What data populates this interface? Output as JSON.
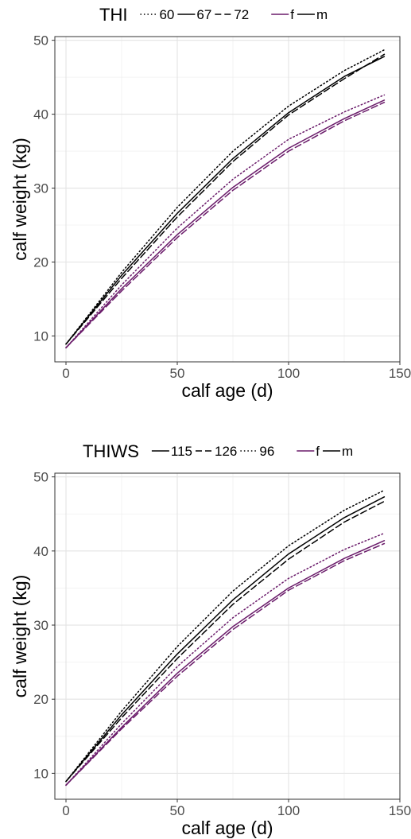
{
  "chart_data": [
    {
      "type": "line",
      "xlabel": "calf age (d)",
      "ylabel": "calf weight (kg)",
      "xlim": [
        -5,
        150
      ],
      "ylim": [
        6.5,
        50.5
      ],
      "xticks": [
        0,
        50,
        100,
        150
      ],
      "yticks": [
        10,
        20,
        30,
        40,
        50
      ],
      "grid": true,
      "legend_position": "top",
      "legend": {
        "group_title": "THI",
        "group_entries": [
          {
            "label": "60",
            "linetype": "dotted"
          },
          {
            "label": "67",
            "linetype": "solid"
          },
          {
            "label": "72",
            "linetype": "dashed"
          }
        ],
        "sex_entries": [
          {
            "label": "f",
            "color": "#6a1b6a"
          },
          {
            "label": "m",
            "color": "#000000"
          }
        ]
      },
      "series": [
        {
          "sex": "m",
          "group": "60",
          "linetype": "dotted",
          "color": "#000000",
          "x": [
            0,
            25,
            50,
            75,
            100,
            125,
            143
          ],
          "y": [
            8.9,
            18.6,
            27.4,
            35.0,
            41.1,
            45.9,
            48.7
          ]
        },
        {
          "sex": "m",
          "group": "67",
          "linetype": "solid",
          "color": "#000000",
          "x": [
            0,
            25,
            50,
            75,
            100,
            125,
            143
          ],
          "y": [
            8.9,
            18.2,
            26.6,
            34.0,
            40.2,
            45.1,
            47.8
          ]
        },
        {
          "sex": "m",
          "group": "72",
          "linetype": "dashed",
          "color": "#000000",
          "x": [
            0,
            25,
            50,
            75,
            100,
            125,
            143
          ],
          "y": [
            8.9,
            17.8,
            26.1,
            33.6,
            39.9,
            44.8,
            48.1
          ]
        },
        {
          "sex": "f",
          "group": "60",
          "linetype": "dotted",
          "color": "#6a1b6a",
          "x": [
            0,
            25,
            50,
            75,
            100,
            125,
            143
          ],
          "y": [
            8.4,
            16.9,
            24.6,
            31.2,
            36.6,
            40.3,
            42.6
          ]
        },
        {
          "sex": "f",
          "group": "67",
          "linetype": "solid",
          "color": "#6a1b6a",
          "x": [
            0,
            25,
            50,
            75,
            100,
            125,
            143
          ],
          "y": [
            8.4,
            16.4,
            23.7,
            30.1,
            35.4,
            39.4,
            41.9
          ]
        },
        {
          "sex": "f",
          "group": "72",
          "linetype": "dashed",
          "color": "#6a1b6a",
          "x": [
            0,
            25,
            50,
            75,
            100,
            125,
            143
          ],
          "y": [
            8.4,
            16.1,
            23.3,
            29.7,
            35.0,
            39.1,
            41.6
          ]
        }
      ]
    },
    {
      "type": "line",
      "xlabel": "calf age (d)",
      "ylabel": "calf weight (kg)",
      "xlim": [
        -5,
        150
      ],
      "ylim": [
        6.5,
        50.5
      ],
      "xticks": [
        0,
        50,
        100,
        150
      ],
      "yticks": [
        10,
        20,
        30,
        40,
        50
      ],
      "grid": true,
      "legend_position": "top",
      "legend": {
        "group_title": "THIWS",
        "group_entries": [
          {
            "label": "115",
            "linetype": "solid"
          },
          {
            "label": "126",
            "linetype": "dashed"
          },
          {
            "label": "96",
            "linetype": "dotted"
          }
        ],
        "sex_entries": [
          {
            "label": "f",
            "color": "#6a1b6a"
          },
          {
            "label": "m",
            "color": "#000000"
          }
        ]
      },
      "series": [
        {
          "sex": "m",
          "group": "96",
          "linetype": "dotted",
          "color": "#000000",
          "x": [
            0,
            25,
            50,
            75,
            100,
            125,
            143
          ],
          "y": [
            8.9,
            18.4,
            27.1,
            34.6,
            40.7,
            45.5,
            48.2
          ]
        },
        {
          "sex": "m",
          "group": "115",
          "linetype": "solid",
          "color": "#000000",
          "x": [
            0,
            25,
            50,
            75,
            100,
            125,
            143
          ],
          "y": [
            8.9,
            17.9,
            26.1,
            33.4,
            39.6,
            44.5,
            47.3
          ]
        },
        {
          "sex": "m",
          "group": "126",
          "linetype": "dashed",
          "color": "#000000",
          "x": [
            0,
            25,
            50,
            75,
            100,
            125,
            143
          ],
          "y": [
            8.9,
            17.5,
            25.5,
            32.8,
            38.9,
            43.9,
            46.7
          ]
        },
        {
          "sex": "f",
          "group": "96",
          "linetype": "dotted",
          "color": "#6a1b6a",
          "x": [
            0,
            25,
            50,
            75,
            100,
            125,
            143
          ],
          "y": [
            8.4,
            16.7,
            24.4,
            31.0,
            36.3,
            40.2,
            42.4
          ]
        },
        {
          "sex": "f",
          "group": "115",
          "linetype": "solid",
          "color": "#6a1b6a",
          "x": [
            0,
            25,
            50,
            75,
            100,
            125,
            143
          ],
          "y": [
            8.4,
            16.2,
            23.5,
            29.8,
            35.0,
            39.0,
            41.4
          ]
        },
        {
          "sex": "f",
          "group": "126",
          "linetype": "dashed",
          "color": "#6a1b6a",
          "x": [
            0,
            25,
            50,
            75,
            100,
            125,
            143
          ],
          "y": [
            8.4,
            16.0,
            23.1,
            29.4,
            34.7,
            38.7,
            41.0
          ]
        }
      ]
    }
  ]
}
